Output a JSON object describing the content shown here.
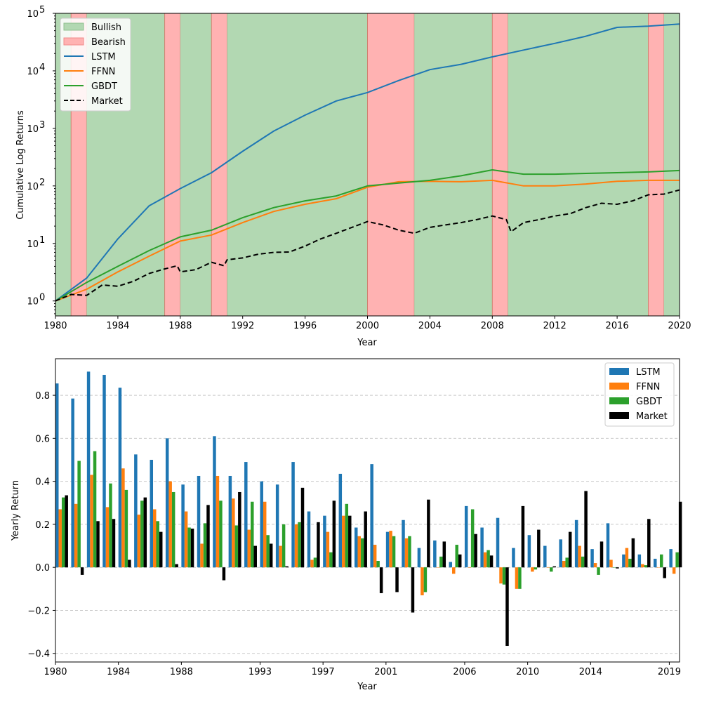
{
  "chart_data": [
    {
      "type": "line",
      "xlabel": "Year",
      "ylabel": "Cumulative Log Returns",
      "ylog": true,
      "xlim": [
        1980,
        2020
      ],
      "ylim": [
        0.55,
        100000
      ],
      "x_ticks": [
        "1980",
        "1984",
        "1988",
        "1992",
        "1996",
        "2000",
        "2004",
        "2008",
        "2012",
        "2016",
        "2020"
      ],
      "y_ticks": [
        {
          "value": 1,
          "base": "10",
          "exp": "0"
        },
        {
          "value": 10,
          "base": "10",
          "exp": "1"
        },
        {
          "value": 100,
          "base": "10",
          "exp": "2"
        },
        {
          "value": 1000,
          "base": "10",
          "exp": "3"
        },
        {
          "value": 10000,
          "base": "10",
          "exp": "4"
        },
        {
          "value": 100000,
          "base": "10",
          "exp": "5"
        }
      ],
      "regimes": [
        {
          "start": 1980,
          "end": 1981,
          "regime": "Bullish"
        },
        {
          "start": 1981,
          "end": 1982,
          "regime": "Bearish"
        },
        {
          "start": 1982,
          "end": 1987,
          "regime": "Bullish"
        },
        {
          "start": 1987,
          "end": 1988,
          "regime": "Bearish"
        },
        {
          "start": 1988,
          "end": 1990,
          "regime": "Bullish"
        },
        {
          "start": 1990,
          "end": 1991,
          "regime": "Bearish"
        },
        {
          "start": 1991,
          "end": 2000,
          "regime": "Bullish"
        },
        {
          "start": 2000,
          "end": 2003,
          "regime": "Bearish"
        },
        {
          "start": 2003,
          "end": 2008,
          "regime": "Bullish"
        },
        {
          "start": 2008,
          "end": 2009,
          "regime": "Bearish"
        },
        {
          "start": 2009,
          "end": 2018,
          "regime": "Bullish"
        },
        {
          "start": 2018,
          "end": 2019,
          "regime": "Bearish"
        },
        {
          "start": 2019,
          "end": 2020,
          "regime": "Bullish"
        }
      ],
      "legend": {
        "position": "upper left",
        "entries": [
          {
            "label": "Bullish",
            "kind": "patch",
            "color": "#b2d8b2",
            "edge": "#8fc08f"
          },
          {
            "label": "Bearish",
            "kind": "patch",
            "color": "#ffb2b2",
            "edge": "#f08a8a"
          },
          {
            "label": "LSTM",
            "kind": "line",
            "color": "#1f77b4"
          },
          {
            "label": "FFNN",
            "kind": "line",
            "color": "#ff7f0e"
          },
          {
            "label": "GBDT",
            "kind": "line",
            "color": "#2ca02c"
          },
          {
            "label": "Market",
            "kind": "dashed",
            "color": "#000000"
          }
        ]
      },
      "series": [
        {
          "name": "LSTM",
          "color": "#1f77b4",
          "dash": false,
          "x": [
            1980,
            1982,
            1984,
            1986,
            1988,
            1990,
            1992,
            1994,
            1996,
            1998,
            2000,
            2002,
            2004,
            2006,
            2008,
            2010,
            2012,
            2014,
            2016,
            2018,
            2020
          ],
          "y": [
            1,
            2.5,
            12,
            45,
            90,
            170,
            400,
            900,
            1700,
            3000,
            4200,
            6800,
            10500,
            13000,
            17500,
            23000,
            30000,
            40000,
            57000,
            60000,
            65000
          ]
        },
        {
          "name": "FFNN",
          "color": "#ff7f0e",
          "dash": false,
          "x": [
            1980,
            1982,
            1984,
            1986,
            1988,
            1990,
            1992,
            1994,
            1996,
            1998,
            2000,
            2002,
            2004,
            2006,
            2008,
            2010,
            2012,
            2014,
            2016,
            2018,
            2020
          ],
          "y": [
            1,
            1.6,
            3.2,
            6,
            11,
            14,
            23,
            36,
            48,
            60,
            95,
            118,
            120,
            118,
            125,
            100,
            100,
            108,
            120,
            125,
            125
          ]
        },
        {
          "name": "GBDT",
          "color": "#2ca02c",
          "dash": false,
          "x": [
            1980,
            1982,
            1984,
            1986,
            1988,
            1990,
            1992,
            1994,
            1996,
            1998,
            2000,
            2002,
            2004,
            2006,
            2008,
            2010,
            2012,
            2014,
            2016,
            2018,
            2020
          ],
          "y": [
            1,
            2.1,
            4,
            7.5,
            13,
            17,
            28,
            42,
            55,
            67,
            100,
            112,
            125,
            150,
            190,
            160,
            160,
            165,
            170,
            175,
            185
          ]
        },
        {
          "name": "Market",
          "color": "#000000",
          "dash": true,
          "x": [
            1980,
            1981,
            1982,
            1983,
            1984,
            1985,
            1986,
            1987,
            1987.8,
            1988,
            1989,
            1990,
            1990.8,
            1991,
            1992,
            1993,
            1994,
            1995,
            1996,
            1997,
            1998,
            1999,
            2000,
            2001,
            2002,
            2003,
            2004,
            2005,
            2006,
            2007,
            2008,
            2008.9,
            2009.2,
            2010,
            2011,
            2012,
            2013,
            2014,
            2015,
            2016,
            2017,
            2018,
            2019,
            2020
          ],
          "y": [
            1,
            1.3,
            1.25,
            1.9,
            1.8,
            2.2,
            3,
            3.6,
            4.1,
            3.2,
            3.5,
            4.7,
            4.1,
            5.2,
            5.6,
            6.5,
            7,
            7.1,
            9,
            12,
            15,
            19,
            24,
            21,
            17,
            15,
            19,
            21,
            23,
            26,
            30,
            26,
            16,
            23,
            26,
            30,
            33,
            42,
            50,
            48,
            55,
            70,
            72,
            85
          ]
        }
      ]
    },
    {
      "type": "bar",
      "xlabel": "Year",
      "ylabel": "Yearly Return",
      "ylim": [
        -0.44,
        0.97
      ],
      "grid": true,
      "y_ticks": [
        "−0.4",
        "−0.2",
        "0.0",
        "0.2",
        "0.4",
        "0.6",
        "0.8"
      ],
      "y_tick_values": [
        -0.4,
        -0.2,
        0,
        0.2,
        0.4,
        0.6,
        0.8
      ],
      "x_tick_labels": [
        "1980",
        "1984",
        "1988",
        "1993",
        "1997",
        "2001",
        "2006",
        "2010",
        "2014",
        "2019"
      ],
      "x_tick_years": [
        1980,
        1984,
        1988,
        1993,
        1997,
        2001,
        2006,
        2010,
        2014,
        2019
      ],
      "legend": {
        "position": "top-right"
      },
      "categories": [
        1980,
        1981,
        1982,
        1983,
        1984,
        1985,
        1986,
        1987,
        1988,
        1989,
        1990,
        1991,
        1992,
        1993,
        1994,
        1995,
        1996,
        1997,
        1998,
        1999,
        2000,
        2001,
        2002,
        2003,
        2004,
        2005,
        2006,
        2007,
        2008,
        2009,
        2010,
        2011,
        2012,
        2013,
        2014,
        2015,
        2016,
        2017,
        2018,
        2019
      ],
      "series": [
        {
          "name": "LSTM",
          "color": "#1f77b4",
          "values": [
            0.855,
            0.785,
            0.91,
            0.895,
            0.835,
            0.525,
            0.5,
            0.6,
            0.385,
            0.425,
            0.61,
            0.425,
            0.49,
            0.4,
            0.385,
            0.49,
            0.26,
            0.24,
            0.435,
            0.185,
            0.48,
            0.165,
            0.22,
            0.09,
            0.125,
            0.025,
            0.285,
            0.185,
            0.23,
            0.09,
            0.15,
            0.1,
            0.13,
            0.22,
            0.085,
            0.205,
            0.06,
            0.06,
            0.04,
            0.085
          ]
        },
        {
          "name": "FFNN",
          "color": "#ff7f0e",
          "values": [
            0.27,
            0.295,
            0.43,
            0.28,
            0.46,
            0.245,
            0.27,
            0.4,
            0.26,
            0.11,
            0.425,
            0.32,
            0.175,
            0.305,
            0.1,
            0.2,
            0.035,
            0.165,
            0.24,
            0.145,
            0.105,
            0.17,
            0.135,
            -0.13,
            0.0,
            -0.03,
            0.0,
            0.07,
            -0.075,
            -0.1,
            -0.02,
            0.0,
            0.03,
            0.1,
            0.02,
            0.035,
            0.09,
            0.015,
            0.0,
            -0.03
          ]
        },
        {
          "name": "GBDT",
          "color": "#2ca02c",
          "values": [
            0.325,
            0.495,
            0.54,
            0.39,
            0.36,
            0.31,
            0.215,
            0.35,
            0.185,
            0.205,
            0.31,
            0.195,
            0.305,
            0.15,
            0.2,
            0.21,
            0.045,
            0.07,
            0.295,
            0.135,
            0.03,
            0.145,
            0.145,
            -0.115,
            0.05,
            0.105,
            0.27,
            0.08,
            -0.08,
            -0.1,
            -0.01,
            -0.02,
            0.045,
            0.05,
            -0.035,
            0.0,
            0.04,
            0.01,
            0.06,
            0.07
          ]
        },
        {
          "name": "Market",
          "color": "#000000",
          "values": [
            0.335,
            -0.035,
            0.215,
            0.225,
            0.035,
            0.325,
            0.165,
            0.015,
            0.18,
            0.29,
            -0.06,
            0.35,
            0.1,
            0.11,
            0.005,
            0.37,
            0.21,
            0.31,
            0.24,
            0.26,
            -0.12,
            -0.115,
            -0.21,
            0.315,
            0.12,
            0.06,
            0.155,
            0.055,
            -0.365,
            0.285,
            0.175,
            0.005,
            0.165,
            0.355,
            0.12,
            -0.005,
            0.135,
            0.225,
            -0.05,
            0.305
          ]
        }
      ]
    }
  ]
}
